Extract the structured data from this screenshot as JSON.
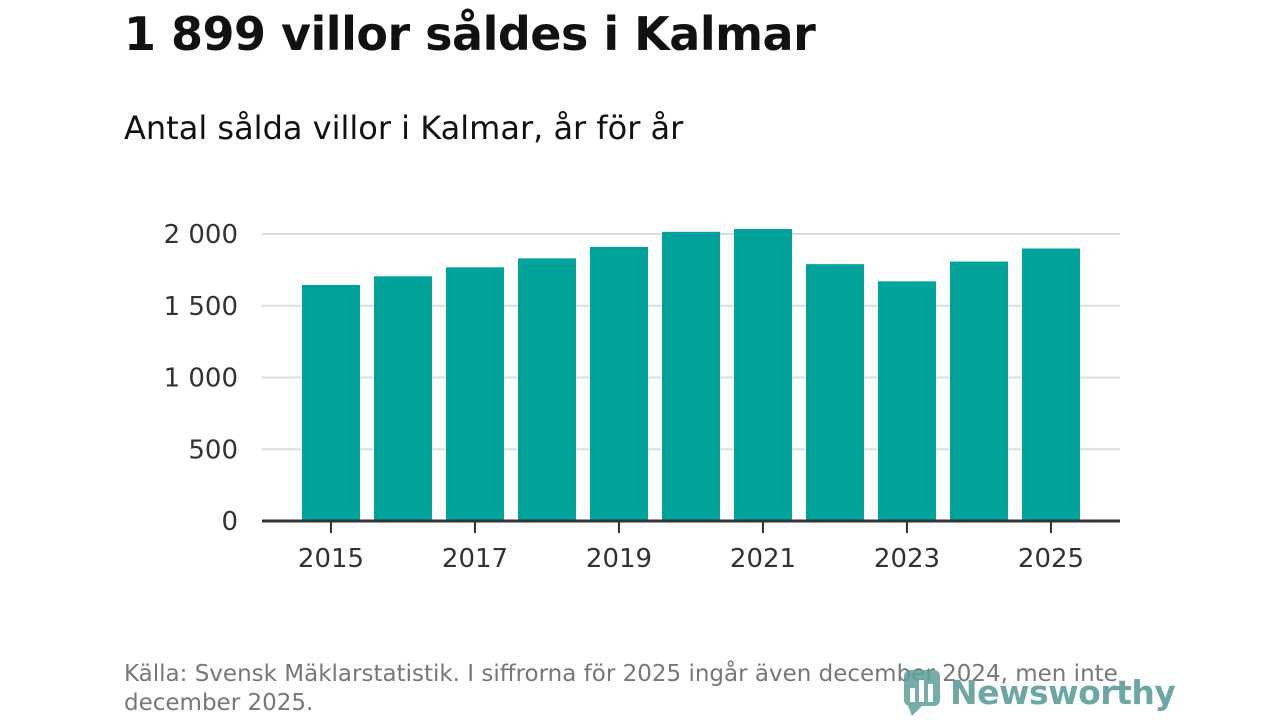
{
  "chart_data": {
    "type": "bar",
    "title": "1 899 villor såldes i Kalmar",
    "subtitle": "Antal sålda villor i Kalmar, år för år",
    "categories": [
      "2015",
      "2016",
      "2017",
      "2018",
      "2019",
      "2020",
      "2021",
      "2022",
      "2023",
      "2024",
      "2025"
    ],
    "values": [
      1645,
      1705,
      1768,
      1830,
      1910,
      2015,
      2035,
      1790,
      1670,
      1808,
      1899
    ],
    "x_tick_labels": [
      "2015",
      "2017",
      "2019",
      "2021",
      "2023",
      "2025"
    ],
    "y_ticks": [
      0,
      500,
      1000,
      1500,
      2000
    ],
    "y_tick_labels": [
      "0",
      "500",
      "1 000",
      "1 500",
      "2 000"
    ],
    "ylim": [
      0,
      2000
    ],
    "grid": true,
    "bar_color": "#00a39a",
    "xlabel": "",
    "ylabel": ""
  },
  "footer": {
    "source": "Källa: Svensk Mäklarstatistik. I siffrorna för 2025 ingår även december 2024, men inte december 2025."
  },
  "logo": {
    "text": "Newsworthy",
    "icon": "bar-chart-logo-icon",
    "color": "#5e9e9a"
  }
}
